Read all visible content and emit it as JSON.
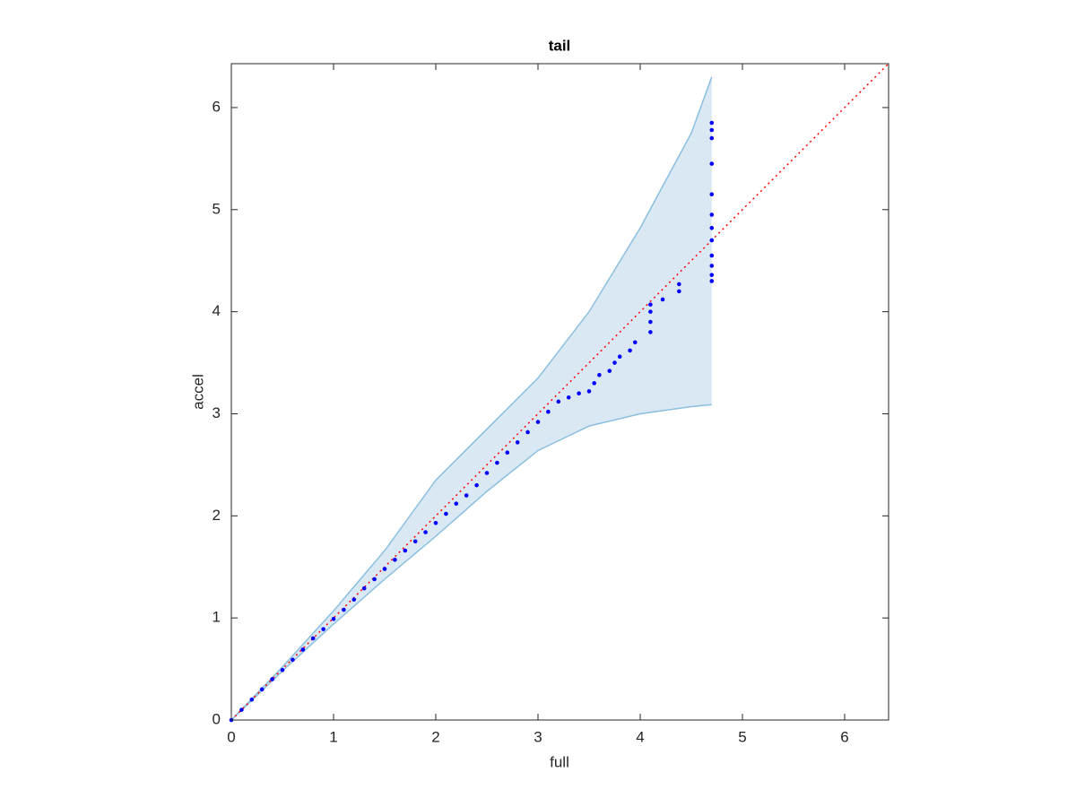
{
  "chart_data": {
    "type": "scatter",
    "title": "tail",
    "x_label": "full",
    "y_label": "accel",
    "xlim": [
      0,
      6.43
    ],
    "ylim": [
      0,
      6.43
    ],
    "xticks": [
      0,
      1,
      2,
      3,
      4,
      5,
      6
    ],
    "yticks": [
      0,
      1,
      2,
      3,
      4,
      5,
      6
    ],
    "grid": false,
    "box": true,
    "band": {
      "x": [
        0,
        0.5,
        1,
        1.5,
        2,
        2.5,
        3,
        3.5,
        4,
        4.5,
        4.7
      ],
      "upper": [
        0,
        0.52,
        1.07,
        1.66,
        2.35,
        2.85,
        3.35,
        4.0,
        4.82,
        5.75,
        6.3
      ],
      "lower": [
        0,
        0.48,
        0.94,
        1.38,
        1.8,
        2.24,
        2.64,
        2.88,
        3.0,
        3.07,
        3.09
      ],
      "color": "#dae8f4",
      "edge_color": "#8bbfe0"
    },
    "reference_line": {
      "x": [
        0,
        6.43
      ],
      "y": [
        0,
        6.43
      ],
      "color": "#ff0000"
    },
    "series": [
      {
        "color": "#0000ff",
        "x": [
          0,
          0.1,
          0.2,
          0.3,
          0.4,
          0.5,
          0.6,
          0.7,
          0.8,
          0.9,
          1.0,
          1.1,
          1.2,
          1.3,
          1.4,
          1.5,
          1.6,
          1.7,
          1.8,
          1.9,
          2.0,
          2.1,
          2.2,
          2.3,
          2.4,
          2.5,
          2.6,
          2.7,
          2.8,
          2.9,
          3.0,
          3.1,
          3.2,
          3.3,
          3.4,
          3.5,
          3.55,
          3.6,
          3.7,
          3.75,
          3.8,
          3.9,
          3.95,
          4.1,
          4.1,
          4.1,
          4.1,
          4.22,
          4.38,
          4.38,
          4.7,
          4.7,
          4.7,
          4.7,
          4.7,
          4.7,
          4.7,
          4.7,
          4.7,
          4.7,
          4.7,
          4.7
        ],
        "values": [
          0,
          0.1,
          0.2,
          0.3,
          0.4,
          0.49,
          0.59,
          0.69,
          0.8,
          0.89,
          0.99,
          1.08,
          1.18,
          1.29,
          1.38,
          1.48,
          1.57,
          1.66,
          1.75,
          1.84,
          1.93,
          2.02,
          2.12,
          2.2,
          2.3,
          2.42,
          2.52,
          2.62,
          2.72,
          2.82,
          2.92,
          3.02,
          3.12,
          3.16,
          3.2,
          3.22,
          3.3,
          3.38,
          3.42,
          3.5,
          3.56,
          3.62,
          3.7,
          3.8,
          3.9,
          4.0,
          4.07,
          4.12,
          4.2,
          4.27,
          4.3,
          4.36,
          4.45,
          4.55,
          4.7,
          4.82,
          4.95,
          5.15,
          5.45,
          5.7,
          5.78,
          5.85
        ]
      }
    ]
  }
}
